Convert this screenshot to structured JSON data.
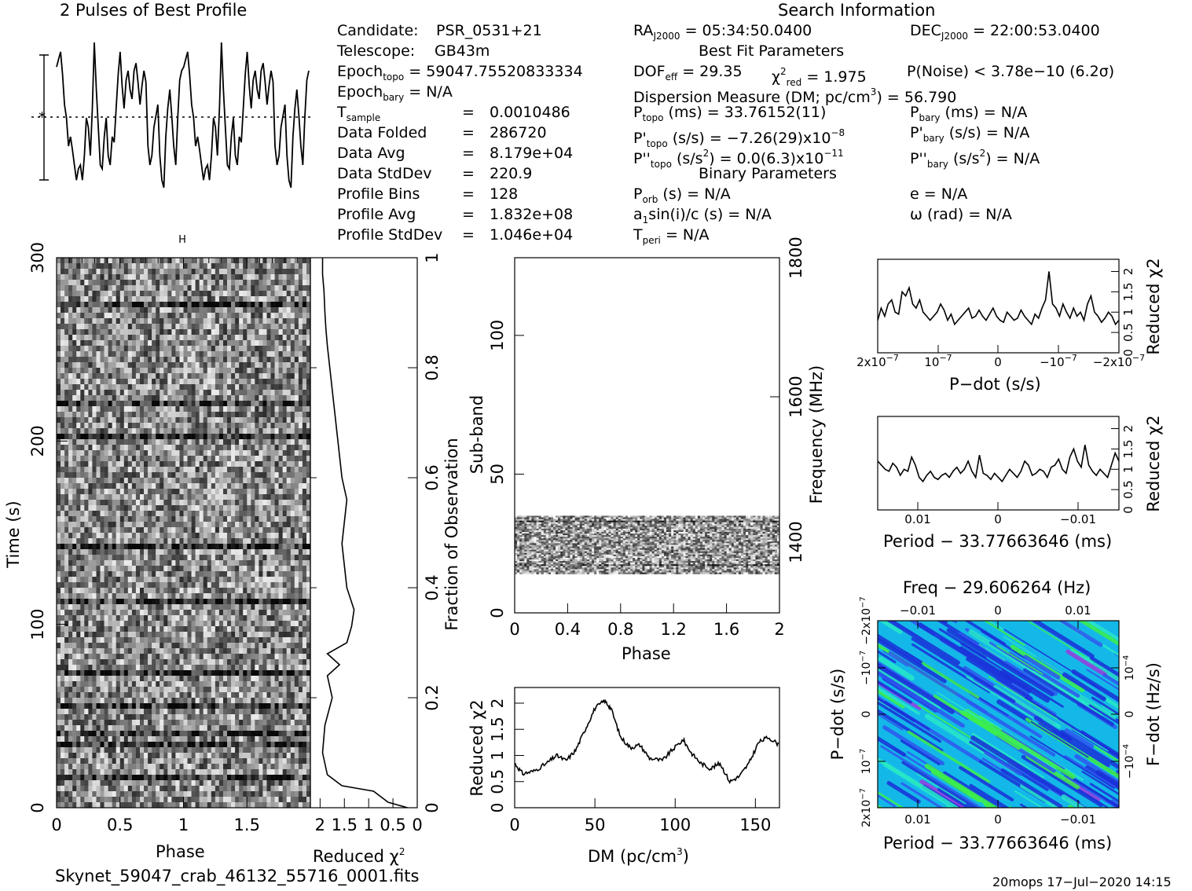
{
  "header": {
    "profile_title": "2 Pulses of Best Profile",
    "search_title": "Search Information",
    "best_fit_title": "Best Fit Parameters",
    "binary_title": "Binary Parameters"
  },
  "info": {
    "candidate_label": "Candidate:",
    "candidate": "PSR_0531+21",
    "telescope_label": "Telescope:",
    "telescope": "GB43m",
    "epoch_topo_label": "Epoch",
    "epoch_topo_sub": "topo",
    "epoch_topo": "= 59047.75520833334",
    "epoch_bary_label": "Epoch",
    "epoch_bary_sub": "bary",
    "epoch_bary": "= N/A",
    "tsample_label": "T",
    "tsample_sub": "sample",
    "tsample": "0.0010486",
    "data_folded_label": "Data Folded",
    "data_folded": "286720",
    "data_avg_label": "Data Avg",
    "data_avg": "8.179e+04",
    "data_std_label": "Data StdDev",
    "data_std": "220.9",
    "profile_bins_label": "Profile Bins",
    "profile_bins": "128",
    "profile_avg_label": "Profile Avg",
    "profile_avg": "1.832e+08",
    "profile_std_label": "Profile StdDev",
    "profile_std": "1.046e+04",
    "eq": "="
  },
  "search": {
    "ra_prefix": "RA",
    "ra_sub": "J2000",
    "ra": "= 05:34:50.0400",
    "dec_prefix": "DEC",
    "dec_sub": "J2000",
    "dec": "= 22:00:53.0400",
    "dof_prefix": "DOF",
    "dof_sub": "eff",
    "dof": "= 29.35",
    "chi_prefix": "χ",
    "chi_sup": "2",
    "chi_sub": "red",
    "chi": "= 1.975",
    "pnoise": "P(Noise) < 3.78e−10   (6.2σ)",
    "dm_line": "Dispersion Measure (DM; pc/cm",
    "dm_sup": "3",
    "dm_value": ") = 56.790",
    "ptopo_prefix": "P",
    "ptopo_sub": "topo",
    "ptopo": "(ms) =  33.76152(11)",
    "pbary_prefix": "P",
    "pbary_sub": "bary",
    "pbary": "(ms) = N/A",
    "pdot_prefix": "P'",
    "pdot_sub": "topo",
    "pdot": "(s/s) = −7.26(29)x10",
    "pdot_exp": "−8",
    "pdotbary_prefix": "P'",
    "pdotbary_sub": "bary",
    "pdotbary": "(s/s) = N/A",
    "pddot_prefix": "P''",
    "pddot_sub": "topo",
    "pddot": "(s/s",
    "pddot_sup": "2",
    "pddot_val": ") = 0.0(6.3)x10",
    "pddot_exp": "−11",
    "pddotbary_prefix": "P''",
    "pddotbary_sub": "bary",
    "pddotbary": "(s/s",
    "pddotbary_sup": "2",
    "pddotbary_val": ") = N/A",
    "porb_prefix": "P",
    "porb_sub": "orb",
    "porb": "(s) = N/A",
    "e": "e = N/A",
    "a1_prefix": "a",
    "a1_sub": "1",
    "a1": "sin(i)/c (s) = N/A",
    "omega": "ω (rad) = N/A",
    "tperi_prefix": "T",
    "tperi_sub": "peri",
    "tperi": "= N/A"
  },
  "footer": {
    "filename": "Skynet_59047_crab_46132_55716_0001.fits",
    "stamp": "20mops  17−Jul−2020 14:15"
  },
  "chart_data": [
    {
      "id": "profile",
      "type": "line",
      "title": "2 Pulses of Best Profile",
      "phase_range": [
        0,
        2
      ],
      "values": [
        0.82,
        0.86,
        0.9,
        0.78,
        0.62,
        0.55,
        0.4,
        0.45,
        0.38,
        0.3,
        0.22,
        0.28,
        0.3,
        0.22,
        0.35,
        0.55,
        0.5,
        0.35,
        0.6,
        0.95,
        0.7,
        0.5,
        0.3,
        0.28,
        0.45,
        0.55,
        0.35,
        0.3,
        0.45,
        0.42,
        0.6,
        0.78,
        0.9,
        0.72,
        0.6,
        0.75,
        0.8,
        0.7,
        0.65,
        0.8,
        0.84,
        0.74,
        0.62,
        0.72,
        0.8,
        0.74,
        0.4,
        0.3,
        0.35,
        0.5,
        0.56,
        0.62,
        0.35,
        0.22,
        0.18,
        0.45,
        0.6,
        0.7,
        0.56,
        0.4,
        0.3,
        0.55,
        0.75,
        0.8,
        0.82,
        0.86,
        0.9,
        0.78,
        0.62,
        0.55,
        0.4,
        0.45,
        0.38,
        0.3,
        0.22,
        0.28,
        0.3,
        0.22,
        0.35,
        0.55,
        0.5,
        0.35,
        0.6,
        0.95,
        0.7,
        0.5,
        0.3,
        0.28,
        0.45,
        0.55,
        0.35,
        0.3,
        0.45,
        0.42,
        0.6,
        0.78,
        0.9,
        0.72,
        0.6,
        0.75,
        0.8,
        0.7,
        0.65,
        0.8,
        0.84,
        0.74,
        0.62,
        0.72,
        0.8,
        0.74,
        0.4,
        0.3,
        0.35,
        0.5,
        0.56,
        0.62,
        0.35,
        0.22,
        0.18,
        0.45,
        0.6,
        0.7,
        0.56,
        0.4,
        0.3,
        0.55,
        0.75,
        0.8
      ]
    },
    {
      "id": "time-phase",
      "type": "heatmap",
      "xlabel": "Phase",
      "ylabel": "Time (s)",
      "xlim": [
        0,
        2
      ],
      "ylim": [
        0,
        300
      ],
      "x_ticks": [
        "0",
        "0.5",
        "1",
        "1.5"
      ],
      "y_ticks": [
        "0",
        "100",
        "200",
        "300"
      ],
      "colormap": "grayscale"
    },
    {
      "id": "time-chi2",
      "type": "line",
      "xlabel": "Reduced χ",
      "xlabel_sup": "2",
      "x_ticks": [
        "2",
        "1.5",
        "1",
        "0.5",
        "0"
      ],
      "xlim": [
        2.2,
        0
      ],
      "right_axis_label": "Fraction of Observation",
      "right_ticks": [
        "0",
        "0.2",
        "0.4",
        "0.6",
        "0.8",
        "1"
      ],
      "points": [
        [
          0.2,
          0.0
        ],
        [
          0.6,
          0.01
        ],
        [
          0.9,
          0.03
        ],
        [
          1.55,
          0.04
        ],
        [
          1.85,
          0.06
        ],
        [
          1.95,
          0.1
        ],
        [
          1.9,
          0.15
        ],
        [
          1.75,
          0.2
        ],
        [
          1.85,
          0.24
        ],
        [
          1.6,
          0.26
        ],
        [
          1.85,
          0.28
        ],
        [
          1.45,
          0.3
        ],
        [
          1.35,
          0.33
        ],
        [
          1.3,
          0.36
        ],
        [
          1.45,
          0.4
        ],
        [
          1.5,
          0.44
        ],
        [
          1.55,
          0.48
        ],
        [
          1.5,
          0.52
        ],
        [
          1.45,
          0.56
        ],
        [
          1.55,
          0.6
        ],
        [
          1.6,
          0.64
        ],
        [
          1.65,
          0.68
        ],
        [
          1.7,
          0.72
        ],
        [
          1.75,
          0.76
        ],
        [
          1.8,
          0.8
        ],
        [
          1.85,
          0.84
        ],
        [
          1.88,
          0.87
        ],
        [
          1.9,
          0.9
        ],
        [
          1.92,
          0.94
        ],
        [
          1.95,
          0.97
        ],
        [
          1.95,
          1.0
        ]
      ]
    },
    {
      "id": "subband-phase",
      "type": "heatmap",
      "xlabel": "Phase",
      "ylabel": "Sub-band",
      "xlim": [
        0,
        2
      ],
      "ylim": [
        0,
        128
      ],
      "x_ticks": [
        "0",
        "0.4",
        "0.8",
        "1.2",
        "1.6",
        "2"
      ],
      "y_ticks": [
        "0",
        "50",
        "100"
      ],
      "data_band": [
        14,
        35
      ],
      "right_axis_label": "Frequency (MHz)",
      "right_ticks": [
        "1400",
        "1600",
        "1800"
      ]
    },
    {
      "id": "dm-chi2",
      "type": "line",
      "xlabel": "DM (pc/cm",
      "xlabel_sup": "3",
      "xlabel_end": ")",
      "ylabel": "Reduced χ",
      "ylabel_sup": "2",
      "xlim": [
        0,
        165
      ],
      "ylim": [
        0,
        2.3
      ],
      "x_ticks": [
        "0",
        "50",
        "100",
        "150"
      ],
      "y_ticks": [
        "0",
        "0.5",
        "1",
        "1.5",
        "2"
      ],
      "points": [
        [
          0,
          0.85
        ],
        [
          5,
          0.65
        ],
        [
          12,
          0.7
        ],
        [
          20,
          0.85
        ],
        [
          26,
          1.0
        ],
        [
          32,
          0.9
        ],
        [
          38,
          1.1
        ],
        [
          44,
          1.5
        ],
        [
          50,
          1.9
        ],
        [
          56,
          2.05
        ],
        [
          60,
          1.9
        ],
        [
          66,
          1.35
        ],
        [
          72,
          1.15
        ],
        [
          78,
          1.2
        ],
        [
          84,
          0.95
        ],
        [
          92,
          0.9
        ],
        [
          98,
          1.1
        ],
        [
          105,
          1.3
        ],
        [
          110,
          1.05
        ],
        [
          116,
          0.85
        ],
        [
          122,
          0.75
        ],
        [
          128,
          0.85
        ],
        [
          134,
          0.5
        ],
        [
          140,
          0.6
        ],
        [
          146,
          0.85
        ],
        [
          152,
          1.25
        ],
        [
          158,
          1.35
        ],
        [
          165,
          1.2
        ]
      ]
    },
    {
      "id": "pdot-chi2",
      "type": "line",
      "xlabel": "P−dot (s/s)",
      "ylabel": "Reduced χ",
      "ylabel_sup": "2",
      "x_ticks": [
        "2x10",
        "10",
        "0",
        "−10",
        "−2x10"
      ],
      "x_tick_exp": "−7",
      "y_ticks": [
        "0",
        "0.5",
        "1",
        "1.5",
        "2"
      ],
      "ylim": [
        0,
        2.3
      ],
      "values": [
        0.8,
        1.1,
        0.9,
        1.2,
        1.3,
        1.0,
        0.95,
        1.5,
        1.4,
        1.6,
        1.2,
        1.1,
        1.3,
        1.0,
        0.9,
        0.8,
        0.9,
        1.0,
        1.2,
        1.05,
        0.8,
        0.95,
        0.7,
        0.8,
        0.9,
        1.0,
        1.1,
        0.85,
        0.9,
        1.05,
        0.9,
        0.8,
        0.95,
        1.1,
        0.9,
        0.8,
        0.75,
        1.0,
        0.9,
        0.8,
        0.85,
        1.05,
        0.9,
        0.8,
        0.7,
        0.95,
        0.85,
        1.1,
        1.3,
        2.0,
        1.2,
        1.1,
        0.9,
        1.2,
        1.0,
        0.85,
        1.1,
        0.9,
        1.0,
        0.8,
        1.2,
        1.4,
        1.0,
        0.9,
        0.75,
        0.85,
        1.0,
        0.9,
        0.7,
        0.8
      ]
    },
    {
      "id": "period-chi2",
      "type": "line",
      "xlabel": "Period − 33.77663646 (ms)",
      "ylabel": "Reduced χ",
      "ylabel_sup": "2",
      "x_ticks": [
        "0.01",
        "0",
        "−0.01"
      ],
      "y_ticks": [
        "0",
        "0.5",
        "1",
        "1.5",
        "2"
      ],
      "ylim": [
        0,
        2.3
      ],
      "values": [
        1.2,
        1.1,
        1.0,
        0.95,
        1.15,
        1.05,
        0.85,
        1.0,
        0.95,
        1.3,
        1.1,
        0.8,
        0.7,
        0.85,
        0.95,
        0.8,
        0.75,
        0.85,
        0.9,
        0.8,
        0.95,
        1.05,
        0.9,
        1.0,
        1.2,
        0.95,
        0.8,
        1.35,
        0.9,
        0.85,
        0.75,
        0.9,
        0.8,
        0.7,
        0.85,
        1.0,
        0.9,
        0.8,
        0.95,
        1.2,
        1.1,
        0.85,
        0.9,
        1.0,
        0.95,
        0.8,
        1.05,
        1.1,
        1.25,
        1.0,
        0.9,
        1.3,
        1.5,
        1.2,
        1.05,
        1.6,
        1.1,
        0.95,
        0.85,
        1.0,
        0.9,
        0.8,
        1.1,
        1.4,
        1.2
      ]
    },
    {
      "id": "period-pdot",
      "type": "heatmap",
      "title": "Freq − 29.606264 (Hz)",
      "xlabel": "Period − 33.77663646 (ms)",
      "ylabel": "P−dot (s/s)",
      "right_axis_label": "F−dot (Hz/s)",
      "x_ticks": [
        "0.01",
        "0",
        "−0.01"
      ],
      "top_ticks": [
        "−0.01",
        "0",
        "0.01"
      ],
      "y_ticks": [
        "2x10",
        "10",
        "0",
        "−10",
        "−2x10"
      ],
      "y_tick_exp": "−7",
      "right_ticks": [
        "10",
        "0",
        "−10"
      ],
      "right_tick_exp": "−4",
      "colormap": "rainbow",
      "colors": [
        "#1a30d8",
        "#2f57f0",
        "#14b8e8",
        "#27e8c8",
        "#3df04a",
        "#9a3adf"
      ]
    }
  ]
}
